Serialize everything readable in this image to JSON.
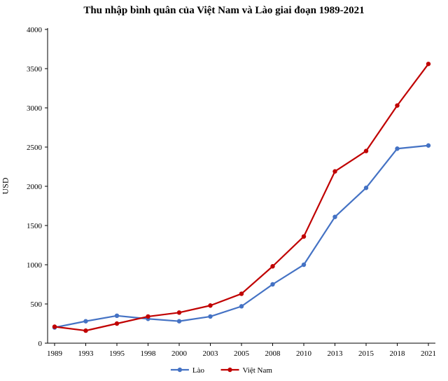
{
  "chart_data": {
    "type": "line",
    "title": "Thu nhập bình quân của Việt Nam và Lào giai đoạn 1989-2021",
    "ylabel": "USD",
    "xlabel": "",
    "categories": [
      "1989",
      "1993",
      "1995",
      "1998",
      "2000",
      "2003",
      "2005",
      "2008",
      "2010",
      "2013",
      "2015",
      "2018",
      "2021"
    ],
    "series": [
      {
        "name": "Lào",
        "color": "#4472C4",
        "values": [
          200,
          280,
          350,
          310,
          280,
          340,
          470,
          750,
          1000,
          1610,
          1980,
          2480,
          2520
        ]
      },
      {
        "name": "Việt Nam",
        "color": "#C00000",
        "values": [
          210,
          160,
          250,
          340,
          390,
          480,
          630,
          980,
          1360,
          2190,
          2450,
          3030,
          3560
        ]
      }
    ],
    "ylim": [
      0,
      4000
    ],
    "ytick_step": 500,
    "grid": false,
    "legend_position": "bottom",
    "axis_color": "#000000"
  }
}
